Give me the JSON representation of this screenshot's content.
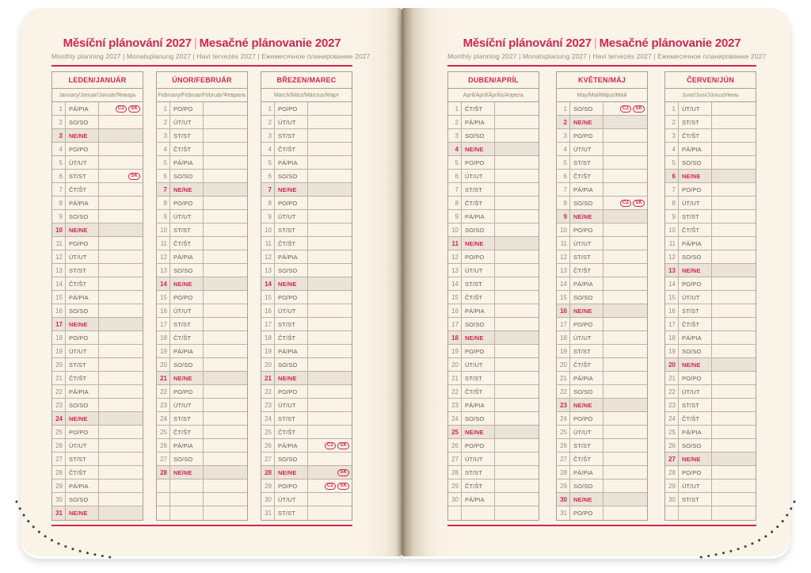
{
  "header": {
    "title_cz": "Měsíční plánování 2027",
    "separator": "|",
    "title_sk": "Mesačné plánovanie 2027",
    "subtitle": "Monthly planning 2027 | Monatsplanung 2027 | Havi tervezés 2027 | Ежемесячное планирование 2027"
  },
  "colors": {
    "accent": "#cf2756",
    "page": "#faf3e7",
    "sunday_bg": "#ebe3d8",
    "stitch": "#45403a"
  },
  "badge_labels": {
    "cz": "CZ",
    "sk": "SK"
  },
  "pages": {
    "left_months": [
      0,
      1,
      2
    ],
    "right_months": [
      3,
      4,
      5
    ]
  },
  "months": [
    {
      "name": "LEDEN/JANUÁR",
      "subtitle": "January/Januar/Január/Январь",
      "days": [
        {
          "n": "1",
          "d": "PÁ/PIA",
          "b": [
            "CZ",
            "SK"
          ]
        },
        {
          "n": "2",
          "d": "SO/SO"
        },
        {
          "n": "3",
          "d": "NE/NE",
          "s": 1
        },
        {
          "n": "4",
          "d": "PO/PO"
        },
        {
          "n": "5",
          "d": "ÚT/UT"
        },
        {
          "n": "6",
          "d": "ST/ST",
          "b": [
            "SK"
          ]
        },
        {
          "n": "7",
          "d": "ČT/ŠT"
        },
        {
          "n": "8",
          "d": "PÁ/PIA"
        },
        {
          "n": "9",
          "d": "SO/SO"
        },
        {
          "n": "10",
          "d": "NE/NE",
          "s": 1
        },
        {
          "n": "11",
          "d": "PO/PO"
        },
        {
          "n": "12",
          "d": "ÚT/UT"
        },
        {
          "n": "13",
          "d": "ST/ST"
        },
        {
          "n": "14",
          "d": "ČT/ŠT"
        },
        {
          "n": "15",
          "d": "PÁ/PIA"
        },
        {
          "n": "16",
          "d": "SO/SO"
        },
        {
          "n": "17",
          "d": "NE/NE",
          "s": 1
        },
        {
          "n": "18",
          "d": "PO/PO"
        },
        {
          "n": "19",
          "d": "ÚT/UT"
        },
        {
          "n": "20",
          "d": "ST/ST"
        },
        {
          "n": "21",
          "d": "ČT/ŠT"
        },
        {
          "n": "22",
          "d": "PÁ/PIA"
        },
        {
          "n": "23",
          "d": "SO/SO"
        },
        {
          "n": "24",
          "d": "NE/NE",
          "s": 1
        },
        {
          "n": "25",
          "d": "PO/PO"
        },
        {
          "n": "26",
          "d": "ÚT/UT"
        },
        {
          "n": "27",
          "d": "ST/ST"
        },
        {
          "n": "28",
          "d": "ČT/ŠT"
        },
        {
          "n": "29",
          "d": "PÁ/PIA"
        },
        {
          "n": "30",
          "d": "SO/SO"
        },
        {
          "n": "31",
          "d": "NE/NE",
          "s": 1
        }
      ]
    },
    {
      "name": "ÚNOR/FEBRUÁR",
      "subtitle": "February/Februar/Február/Февраль",
      "days": [
        {
          "n": "1",
          "d": "PO/PO"
        },
        {
          "n": "2",
          "d": "ÚT/UT"
        },
        {
          "n": "3",
          "d": "ST/ST"
        },
        {
          "n": "4",
          "d": "ČT/ŠT"
        },
        {
          "n": "5",
          "d": "PÁ/PIA"
        },
        {
          "n": "6",
          "d": "SO/SO"
        },
        {
          "n": "7",
          "d": "NE/NE",
          "s": 1
        },
        {
          "n": "8",
          "d": "PO/PO"
        },
        {
          "n": "9",
          "d": "ÚT/UT"
        },
        {
          "n": "10",
          "d": "ST/ST"
        },
        {
          "n": "11",
          "d": "ČT/ŠT"
        },
        {
          "n": "12",
          "d": "PÁ/PIA"
        },
        {
          "n": "13",
          "d": "SO/SO"
        },
        {
          "n": "14",
          "d": "NE/NE",
          "s": 1
        },
        {
          "n": "15",
          "d": "PO/PO"
        },
        {
          "n": "16",
          "d": "ÚT/UT"
        },
        {
          "n": "17",
          "d": "ST/ST"
        },
        {
          "n": "18",
          "d": "ČT/ŠT"
        },
        {
          "n": "19",
          "d": "PÁ/PIA"
        },
        {
          "n": "20",
          "d": "SO/SO"
        },
        {
          "n": "21",
          "d": "NE/NE",
          "s": 1
        },
        {
          "n": "22",
          "d": "PO/PO"
        },
        {
          "n": "23",
          "d": "ÚT/UT"
        },
        {
          "n": "24",
          "d": "ST/ST"
        },
        {
          "n": "25",
          "d": "ČT/ŠT"
        },
        {
          "n": "26",
          "d": "PÁ/PIA"
        },
        {
          "n": "27",
          "d": "SO/SO"
        },
        {
          "n": "28",
          "d": "NE/NE",
          "s": 1
        },
        {
          "n": "",
          "d": ""
        },
        {
          "n": "",
          "d": ""
        },
        {
          "n": "",
          "d": ""
        }
      ]
    },
    {
      "name": "BŘEZEN/MAREC",
      "subtitle": "March/März/Március/Март",
      "days": [
        {
          "n": "1",
          "d": "PO/PO"
        },
        {
          "n": "2",
          "d": "ÚT/UT"
        },
        {
          "n": "3",
          "d": "ST/ST"
        },
        {
          "n": "4",
          "d": "ČT/ŠT"
        },
        {
          "n": "5",
          "d": "PÁ/PIA"
        },
        {
          "n": "6",
          "d": "SO/SO"
        },
        {
          "n": "7",
          "d": "NE/NE",
          "s": 1
        },
        {
          "n": "8",
          "d": "PO/PO"
        },
        {
          "n": "9",
          "d": "ÚT/UT"
        },
        {
          "n": "10",
          "d": "ST/ST"
        },
        {
          "n": "11",
          "d": "ČT/ŠT"
        },
        {
          "n": "12",
          "d": "PÁ/PIA"
        },
        {
          "n": "13",
          "d": "SO/SO"
        },
        {
          "n": "14",
          "d": "NE/NE",
          "s": 1
        },
        {
          "n": "15",
          "d": "PO/PO"
        },
        {
          "n": "16",
          "d": "ÚT/UT"
        },
        {
          "n": "17",
          "d": "ST/ST"
        },
        {
          "n": "18",
          "d": "ČT/ŠT"
        },
        {
          "n": "19",
          "d": "PÁ/PIA"
        },
        {
          "n": "20",
          "d": "SO/SO"
        },
        {
          "n": "21",
          "d": "NE/NE",
          "s": 1
        },
        {
          "n": "22",
          "d": "PO/PO"
        },
        {
          "n": "23",
          "d": "ÚT/UT"
        },
        {
          "n": "24",
          "d": "ST/ST"
        },
        {
          "n": "25",
          "d": "ČT/ŠT"
        },
        {
          "n": "26",
          "d": "PÁ/PIA",
          "b": [
            "CZ",
            "SK"
          ]
        },
        {
          "n": "27",
          "d": "SO/SO"
        },
        {
          "n": "28",
          "d": "NE/NE",
          "s": 1,
          "b": [
            "SK"
          ]
        },
        {
          "n": "29",
          "d": "PO/PO",
          "b": [
            "CZ",
            "SK"
          ]
        },
        {
          "n": "30",
          "d": "ÚT/UT"
        },
        {
          "n": "31",
          "d": "ST/ST"
        }
      ]
    },
    {
      "name": "DUBEN/APRÍL",
      "subtitle": "April/April/Április/Апрель",
      "days": [
        {
          "n": "1",
          "d": "ČT/ŠT"
        },
        {
          "n": "2",
          "d": "PÁ/PIA"
        },
        {
          "n": "3",
          "d": "SO/SO"
        },
        {
          "n": "4",
          "d": "NE/NE",
          "s": 1
        },
        {
          "n": "5",
          "d": "PO/PO"
        },
        {
          "n": "6",
          "d": "ÚT/UT"
        },
        {
          "n": "7",
          "d": "ST/ST"
        },
        {
          "n": "8",
          "d": "ČT/ŠT"
        },
        {
          "n": "9",
          "d": "PÁ/PIA"
        },
        {
          "n": "10",
          "d": "SO/SO"
        },
        {
          "n": "11",
          "d": "NE/NE",
          "s": 1
        },
        {
          "n": "12",
          "d": "PO/PO"
        },
        {
          "n": "13",
          "d": "ÚT/UT"
        },
        {
          "n": "14",
          "d": "ST/ST"
        },
        {
          "n": "15",
          "d": "ČT/ŠT"
        },
        {
          "n": "16",
          "d": "PÁ/PIA"
        },
        {
          "n": "17",
          "d": "SO/SO"
        },
        {
          "n": "18",
          "d": "NE/NE",
          "s": 1
        },
        {
          "n": "19",
          "d": "PO/PO"
        },
        {
          "n": "20",
          "d": "ÚT/UT"
        },
        {
          "n": "21",
          "d": "ST/ST"
        },
        {
          "n": "22",
          "d": "ČT/ŠT"
        },
        {
          "n": "23",
          "d": "PÁ/PIA"
        },
        {
          "n": "24",
          "d": "SO/SO"
        },
        {
          "n": "25",
          "d": "NE/NE",
          "s": 1
        },
        {
          "n": "26",
          "d": "PO/PO"
        },
        {
          "n": "27",
          "d": "ÚT/UT"
        },
        {
          "n": "28",
          "d": "ST/ST"
        },
        {
          "n": "29",
          "d": "ČT/ŠT"
        },
        {
          "n": "30",
          "d": "PÁ/PIA"
        },
        {
          "n": "",
          "d": ""
        }
      ]
    },
    {
      "name": "KVĚTEN/MÁJ",
      "subtitle": "May/Mai/Május/Май",
      "days": [
        {
          "n": "1",
          "d": "SO/SO",
          "b": [
            "CZ",
            "SK"
          ]
        },
        {
          "n": "2",
          "d": "NE/NE",
          "s": 1
        },
        {
          "n": "3",
          "d": "PO/PO"
        },
        {
          "n": "4",
          "d": "ÚT/UT"
        },
        {
          "n": "5",
          "d": "ST/ST"
        },
        {
          "n": "6",
          "d": "ČT/ŠT"
        },
        {
          "n": "7",
          "d": "PÁ/PIA"
        },
        {
          "n": "8",
          "d": "SO/SO",
          "b": [
            "CZ",
            "SK"
          ]
        },
        {
          "n": "9",
          "d": "NE/NE",
          "s": 1
        },
        {
          "n": "10",
          "d": "PO/PO"
        },
        {
          "n": "11",
          "d": "ÚT/UT"
        },
        {
          "n": "12",
          "d": "ST/ST"
        },
        {
          "n": "13",
          "d": "ČT/ŠT"
        },
        {
          "n": "14",
          "d": "PÁ/PIA"
        },
        {
          "n": "15",
          "d": "SO/SO"
        },
        {
          "n": "16",
          "d": "NE/NE",
          "s": 1
        },
        {
          "n": "17",
          "d": "PO/PO"
        },
        {
          "n": "18",
          "d": "ÚT/UT"
        },
        {
          "n": "19",
          "d": "ST/ST"
        },
        {
          "n": "20",
          "d": "ČT/ŠT"
        },
        {
          "n": "21",
          "d": "PÁ/PIA"
        },
        {
          "n": "22",
          "d": "SO/SO"
        },
        {
          "n": "23",
          "d": "NE/NE",
          "s": 1
        },
        {
          "n": "24",
          "d": "PO/PO"
        },
        {
          "n": "25",
          "d": "ÚT/UT"
        },
        {
          "n": "26",
          "d": "ST/ST"
        },
        {
          "n": "27",
          "d": "ČT/ŠT"
        },
        {
          "n": "28",
          "d": "PÁ/PIA"
        },
        {
          "n": "29",
          "d": "SO/SO"
        },
        {
          "n": "30",
          "d": "NE/NE",
          "s": 1
        },
        {
          "n": "31",
          "d": "PO/PO"
        }
      ]
    },
    {
      "name": "ČERVEN/JÚN",
      "subtitle": "June/Juni/Június/Июнь",
      "days": [
        {
          "n": "1",
          "d": "ÚT/UT"
        },
        {
          "n": "2",
          "d": "ST/ST"
        },
        {
          "n": "3",
          "d": "ČT/ŠT"
        },
        {
          "n": "4",
          "d": "PÁ/PIA"
        },
        {
          "n": "5",
          "d": "SO/SO"
        },
        {
          "n": "6",
          "d": "NE/NE",
          "s": 1
        },
        {
          "n": "7",
          "d": "PO/PO"
        },
        {
          "n": "8",
          "d": "ÚT/UT"
        },
        {
          "n": "9",
          "d": "ST/ST"
        },
        {
          "n": "10",
          "d": "ČT/ŠT"
        },
        {
          "n": "11",
          "d": "PÁ/PIA"
        },
        {
          "n": "12",
          "d": "SO/SO"
        },
        {
          "n": "13",
          "d": "NE/NE",
          "s": 1
        },
        {
          "n": "14",
          "d": "PO/PO"
        },
        {
          "n": "15",
          "d": "ÚT/UT"
        },
        {
          "n": "16",
          "d": "ST/ST"
        },
        {
          "n": "17",
          "d": "ČT/ŠT"
        },
        {
          "n": "18",
          "d": "PÁ/PIA"
        },
        {
          "n": "19",
          "d": "SO/SO"
        },
        {
          "n": "20",
          "d": "NE/NE",
          "s": 1
        },
        {
          "n": "21",
          "d": "PO/PO"
        },
        {
          "n": "22",
          "d": "ÚT/UT"
        },
        {
          "n": "23",
          "d": "ST/ST"
        },
        {
          "n": "24",
          "d": "ČT/ŠT"
        },
        {
          "n": "25",
          "d": "PÁ/PIA"
        },
        {
          "n": "26",
          "d": "SO/SO"
        },
        {
          "n": "27",
          "d": "NE/NE",
          "s": 1
        },
        {
          "n": "28",
          "d": "PO/PO"
        },
        {
          "n": "29",
          "d": "ÚT/UT"
        },
        {
          "n": "30",
          "d": "ST/ST"
        },
        {
          "n": "",
          "d": ""
        }
      ]
    }
  ]
}
